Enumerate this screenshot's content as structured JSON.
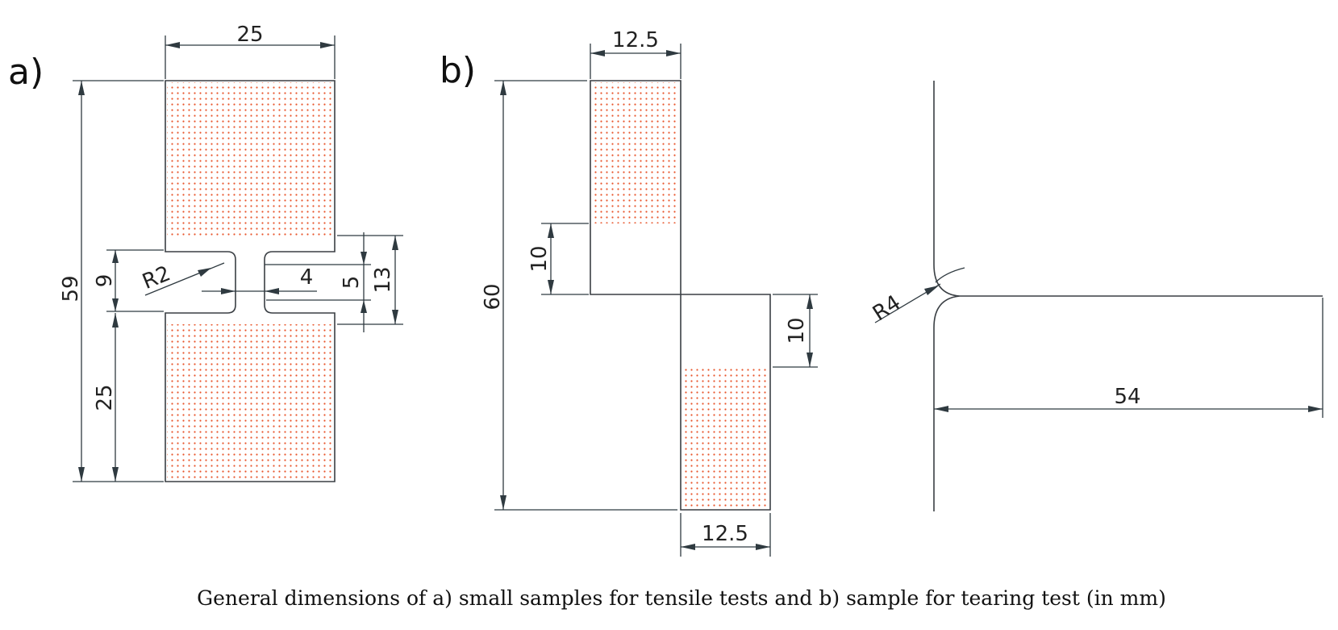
{
  "panels": {
    "a": {
      "label": "a)",
      "dims": {
        "width": "25",
        "total_height": "59",
        "notch_height": "9",
        "grip_height": "25",
        "radius": "R2",
        "gap": "4",
        "inner_height": "5",
        "outer_height": "13"
      }
    },
    "b": {
      "label": "b)",
      "dims": {
        "top_width": "12.5",
        "bottom_width": "12.5",
        "total_height": "60",
        "left_slit": "10",
        "right_slit": "10",
        "radius": "R4",
        "length": "54"
      }
    }
  },
  "caption": "General dimensions of a) small samples for tensile tests and b) sample for tearing test (in mm)",
  "colors": {
    "line": "#3a3f44",
    "dimension": "#2f3a40",
    "hatch_dots": "#e8552c"
  }
}
